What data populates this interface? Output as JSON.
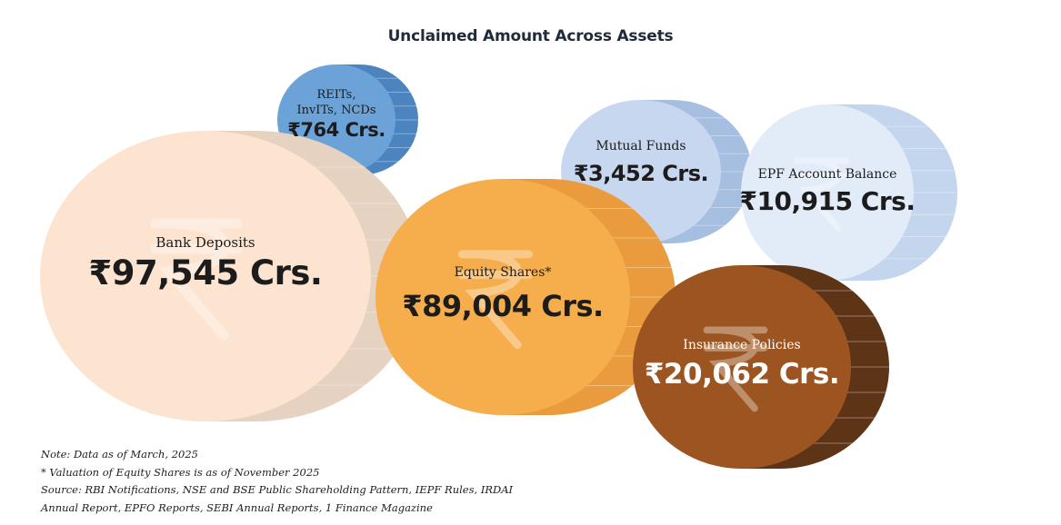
{
  "chart_data": {
    "type": "bubble",
    "title": "Unclaimed Amount Across Assets",
    "unit": "Crs.",
    "currency_symbol": "₹",
    "items": [
      {
        "id": "bank",
        "label": "Bank Deposits",
        "value": 97545,
        "display": "₹97,545 Crs.",
        "color": "#fce4d0",
        "shade": "#e6d2c0",
        "text_color": "#1c1c1c"
      },
      {
        "id": "equity",
        "label": "Equity Shares*",
        "value": 89004,
        "display": "₹89,004 Crs.",
        "color": "#f6ad4c",
        "shade": "#e99b3d",
        "text_color": "#1c1c1c"
      },
      {
        "id": "insurance",
        "label": "Insurance Policies",
        "value": 20062,
        "display": "₹20,062 Crs.",
        "color": "#9c5420",
        "shade": "#5e3416",
        "text_color": "#ffffff"
      },
      {
        "id": "epf",
        "label": "EPF Account Balance",
        "value": 10915,
        "display": "₹10,915 Crs.",
        "color": "#e2ebf8",
        "shade": "#c4d5ee",
        "text_color": "#1c1c1c"
      },
      {
        "id": "mf",
        "label": "Mutual Funds",
        "value": 3452,
        "display": "₹3,452 Crs.",
        "color": "#c6d7ef",
        "shade": "#a6bedf",
        "text_color": "#1c1c1c"
      },
      {
        "id": "reits",
        "label_lines": [
          "REITs,",
          "InvITs, NCDs"
        ],
        "value": 764,
        "display": "₹764 Crs.",
        "color": "#6ba3d9",
        "shade": "#4c84bf",
        "text_color": "#1c1c1c"
      }
    ]
  },
  "notes": {
    "line1": "Note: Data as of March, 2025",
    "line2": "* Valuation of Equity Shares is as of November 2025",
    "line3": "Source: RBI Notifications, NSE and BSE Public Shareholding Pattern, IEPF Rules, IRDAI",
    "line4": "Annual Report, EPFO Reports, SEBI Annual Reports, 1 Finance Magazine"
  }
}
